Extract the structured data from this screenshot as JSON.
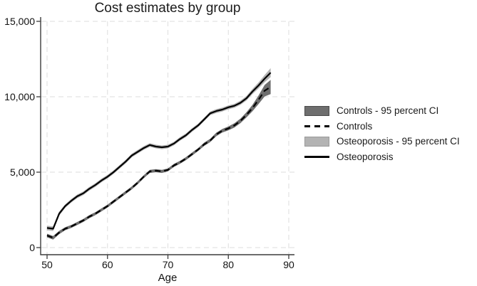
{
  "figure": {
    "title": "Cost estimates by group",
    "background_color": "#ffffff"
  },
  "legend": {
    "items": [
      {
        "label": "Controls - 95 percent CI",
        "swatch": "rect",
        "fill": "#6e6e6e",
        "border": "#4a4a4a"
      },
      {
        "label": "Controls",
        "swatch": "dashed-line",
        "color": "#000000"
      },
      {
        "label": "Osteoporosis - 95 percent CI",
        "swatch": "rect",
        "fill": "#b3b3b3",
        "border": "#9a9a9a"
      },
      {
        "label": "Osteoporosis",
        "swatch": "solid-line",
        "color": "#000000"
      }
    ]
  },
  "chart_data": {
    "type": "line",
    "title": "Cost estimates by group",
    "xlabel": "Age",
    "ylabel": "",
    "xlim": [
      49,
      91
    ],
    "ylim": [
      0,
      15000
    ],
    "x_ticks": [
      50,
      60,
      70,
      80,
      90
    ],
    "y_ticks": [
      0,
      5000,
      10000,
      15000
    ],
    "y_tick_labels": [
      "0",
      "5,000",
      "10,000",
      "15,000"
    ],
    "grid": true,
    "gridline_color": "#dedede",
    "axis_color": "#3c3c3c",
    "tick_label_color": "#111111",
    "legend_position": "right-outside",
    "x": [
      50,
      51,
      52,
      53,
      54,
      55,
      56,
      57,
      58,
      59,
      60,
      61,
      62,
      63,
      64,
      65,
      66,
      67,
      68,
      69,
      70,
      71,
      72,
      73,
      74,
      75,
      76,
      77,
      78,
      79,
      80,
      81,
      82,
      83,
      84,
      85,
      86,
      87
    ],
    "series": [
      {
        "name": "Controls",
        "line_style": "dashed",
        "line_color": "#000000",
        "ci_label": "Controls - 95 percent CI",
        "ci_color": "#6e6e6e",
        "values": [
          800,
          650,
          1000,
          1250,
          1400,
          1600,
          1800,
          2050,
          2250,
          2500,
          2750,
          3050,
          3350,
          3650,
          3950,
          4300,
          4700,
          5050,
          5100,
          5050,
          5150,
          5450,
          5650,
          5900,
          6200,
          6500,
          6850,
          7100,
          7500,
          7750,
          7900,
          8100,
          8400,
          8800,
          9250,
          9800,
          10400,
          10650
        ],
        "ci_halfwidth": [
          120,
          120,
          110,
          100,
          100,
          100,
          100,
          100,
          100,
          100,
          100,
          100,
          100,
          100,
          100,
          100,
          100,
          100,
          100,
          100,
          100,
          100,
          100,
          100,
          100,
          100,
          110,
          110,
          120,
          120,
          130,
          140,
          150,
          170,
          210,
          280,
          380,
          470
        ]
      },
      {
        "name": "Osteoporosis",
        "line_style": "solid",
        "line_color": "#000000",
        "ci_label": "Osteoporosis - 95 percent CI",
        "ci_color": "#b3b3b3",
        "values": [
          1300,
          1250,
          2250,
          2750,
          3100,
          3400,
          3600,
          3900,
          4150,
          4450,
          4700,
          5000,
          5350,
          5700,
          6100,
          6350,
          6600,
          6800,
          6700,
          6650,
          6700,
          6900,
          7200,
          7450,
          7800,
          8100,
          8500,
          8900,
          9050,
          9150,
          9300,
          9400,
          9600,
          9900,
          10350,
          10750,
          11200,
          11600
        ],
        "ci_halfwidth": [
          150,
          150,
          130,
          120,
          120,
          120,
          120,
          120,
          120,
          120,
          120,
          120,
          120,
          120,
          120,
          120,
          120,
          120,
          120,
          120,
          120,
          120,
          120,
          120,
          120,
          120,
          120,
          120,
          130,
          130,
          130,
          130,
          140,
          150,
          170,
          200,
          240,
          300
        ]
      }
    ]
  }
}
